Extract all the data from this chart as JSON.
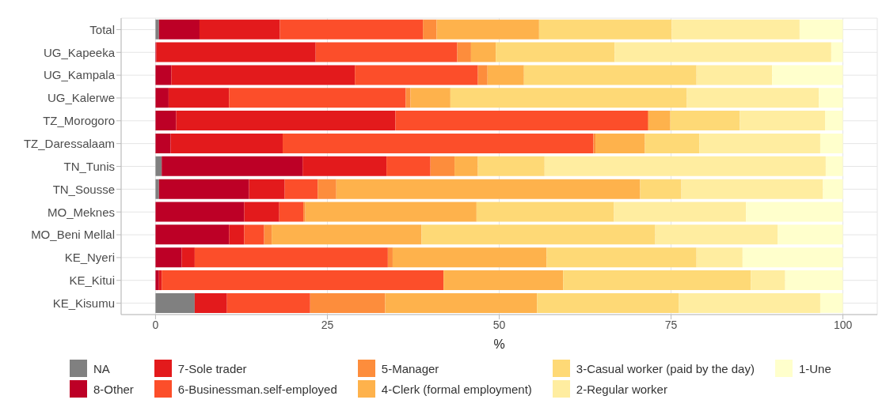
{
  "chart_data": {
    "type": "bar",
    "orientation": "horizontal",
    "stacked": true,
    "xlabel": "%",
    "categories": [
      "Total",
      "UG_Kapeeka",
      "UG_Kampala",
      "UG_Kalerwe",
      "TZ_Morogoro",
      "TZ_Daressalaam",
      "TN_Tunis",
      "TN_Sousse",
      "MO_Meknes",
      "MO_Beni Mellal",
      "KE_Nyeri",
      "KE_Kitui",
      "KE_Kisumu"
    ],
    "series": [
      {
        "name": "NA",
        "color": "#808080",
        "values": [
          0.5,
          0,
          0,
          0,
          0,
          0,
          0.9,
          0.5,
          0,
          0,
          0,
          0,
          5.7
        ]
      },
      {
        "name": "8-Other",
        "color": "#bd0026",
        "values": [
          5.9,
          0.1,
          2.3,
          1.9,
          3.0,
          2.2,
          20.5,
          13.1,
          12.9,
          10.7,
          3.8,
          0.5,
          0
        ]
      },
      {
        "name": "7-Sole trader",
        "color": "#e31a1c",
        "values": [
          11.7,
          23.2,
          26.7,
          8.8,
          31.9,
          16.3,
          12.2,
          5.2,
          5.1,
          2.2,
          1.9,
          0.4,
          4.7
        ]
      },
      {
        "name": "6-Businessman.self-employed",
        "color": "#fc4e2a",
        "values": [
          20.8,
          20.6,
          17.9,
          25.7,
          36.7,
          45.2,
          6.4,
          4.8,
          3.5,
          2.9,
          28.1,
          41.0,
          12.1
        ]
      },
      {
        "name": "5-Manager",
        "color": "#fd8d3c",
        "values": [
          2.0,
          2.0,
          1.4,
          0.7,
          0.2,
          0.3,
          3.5,
          2.7,
          0.3,
          1.1,
          0.7,
          0,
          10.9
        ]
      },
      {
        "name": "4-Clerk (formal employment)",
        "color": "#feb24c",
        "values": [
          14.9,
          3.6,
          5.3,
          5.8,
          3.1,
          7.2,
          3.4,
          44.2,
          24.9,
          21.8,
          22.4,
          17.4,
          22.1
        ]
      },
      {
        "name": "3-Casual worker (paid by the day)",
        "color": "#fed976",
        "values": [
          19.3,
          17.3,
          25.1,
          34.4,
          10.1,
          7.9,
          9.7,
          6.0,
          20.0,
          34.0,
          21.8,
          27.3,
          20.6
        ]
      },
      {
        "name": "2-Regular worker",
        "color": "#ffeda0",
        "values": [
          18.6,
          31.5,
          11.0,
          19.2,
          12.4,
          17.6,
          40.9,
          20.6,
          19.2,
          17.8,
          6.7,
          5.0,
          20.6
        ]
      },
      {
        "name": "1-Une",
        "color": "#ffffcc",
        "values": [
          6.3,
          1.7,
          10.3,
          3.5,
          2.6,
          3.3,
          2.5,
          2.9,
          14.1,
          9.5,
          14.6,
          8.4,
          3.3
        ]
      }
    ],
    "xlim": [
      -5,
      105
    ],
    "xticks": [
      0,
      25,
      50,
      75,
      100
    ],
    "grid": true,
    "legend": "bottom"
  }
}
